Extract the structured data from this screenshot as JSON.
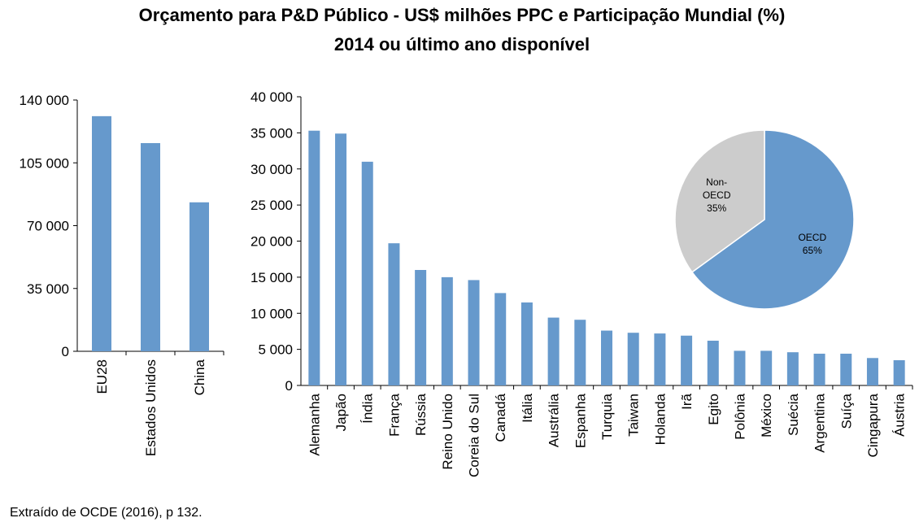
{
  "chart_data": [
    {
      "type": "bar",
      "title": "Orçamento para P&D Público - US$ milhões PPC e Participação Mundial (%)",
      "subtitle": "2014 ou último ano disponível",
      "categories": [
        "EU28",
        "Estados Unidos",
        "China"
      ],
      "values": [
        131000,
        116000,
        83000
      ],
      "ylim": [
        0,
        140000
      ],
      "yticks": [
        0,
        35000,
        70000,
        105000,
        140000
      ],
      "ytick_labels": [
        "0",
        "35 000",
        "70 000",
        "105 000",
        "140 000"
      ],
      "color": "#6699cc"
    },
    {
      "type": "bar",
      "categories": [
        "Alemanha",
        "Japão",
        "Índia",
        "França",
        "Rússia",
        "Reino Unido",
        "Coreia do Sul",
        "Canadá",
        "Itália",
        "Austrália",
        "Espanha",
        "Turquia",
        "Taiwan",
        "Holanda",
        "Irã",
        "Egito",
        "Polônia",
        "México",
        "Suécia",
        "Argentina",
        "Suíça",
        "Cingapura",
        "Áustria"
      ],
      "values": [
        35300,
        34900,
        31000,
        19700,
        16000,
        15000,
        14600,
        12800,
        11500,
        9400,
        9100,
        7600,
        7300,
        7200,
        6900,
        6200,
        4800,
        4800,
        4600,
        4400,
        4400,
        3800,
        3500
      ],
      "ylim": [
        0,
        40000
      ],
      "yticks": [
        0,
        5000,
        10000,
        15000,
        20000,
        25000,
        30000,
        35000,
        40000
      ],
      "ytick_labels": [
        "0",
        "5 000",
        "10 000",
        "15 000",
        "20 000",
        "25 000",
        "30 000",
        "35 000",
        "40 000"
      ],
      "color": "#6699cc"
    },
    {
      "type": "pie",
      "slices": [
        {
          "label": "OECD",
          "value": 65,
          "pct_label": "65%",
          "color": "#6699cc"
        },
        {
          "label": "Non-OECD",
          "label_lines": [
            "Non-",
            "OECD"
          ],
          "value": 35,
          "pct_label": "35%",
          "color": "#cccccc"
        }
      ]
    }
  ],
  "source": "Extraído de OCDE (2016), p 132."
}
